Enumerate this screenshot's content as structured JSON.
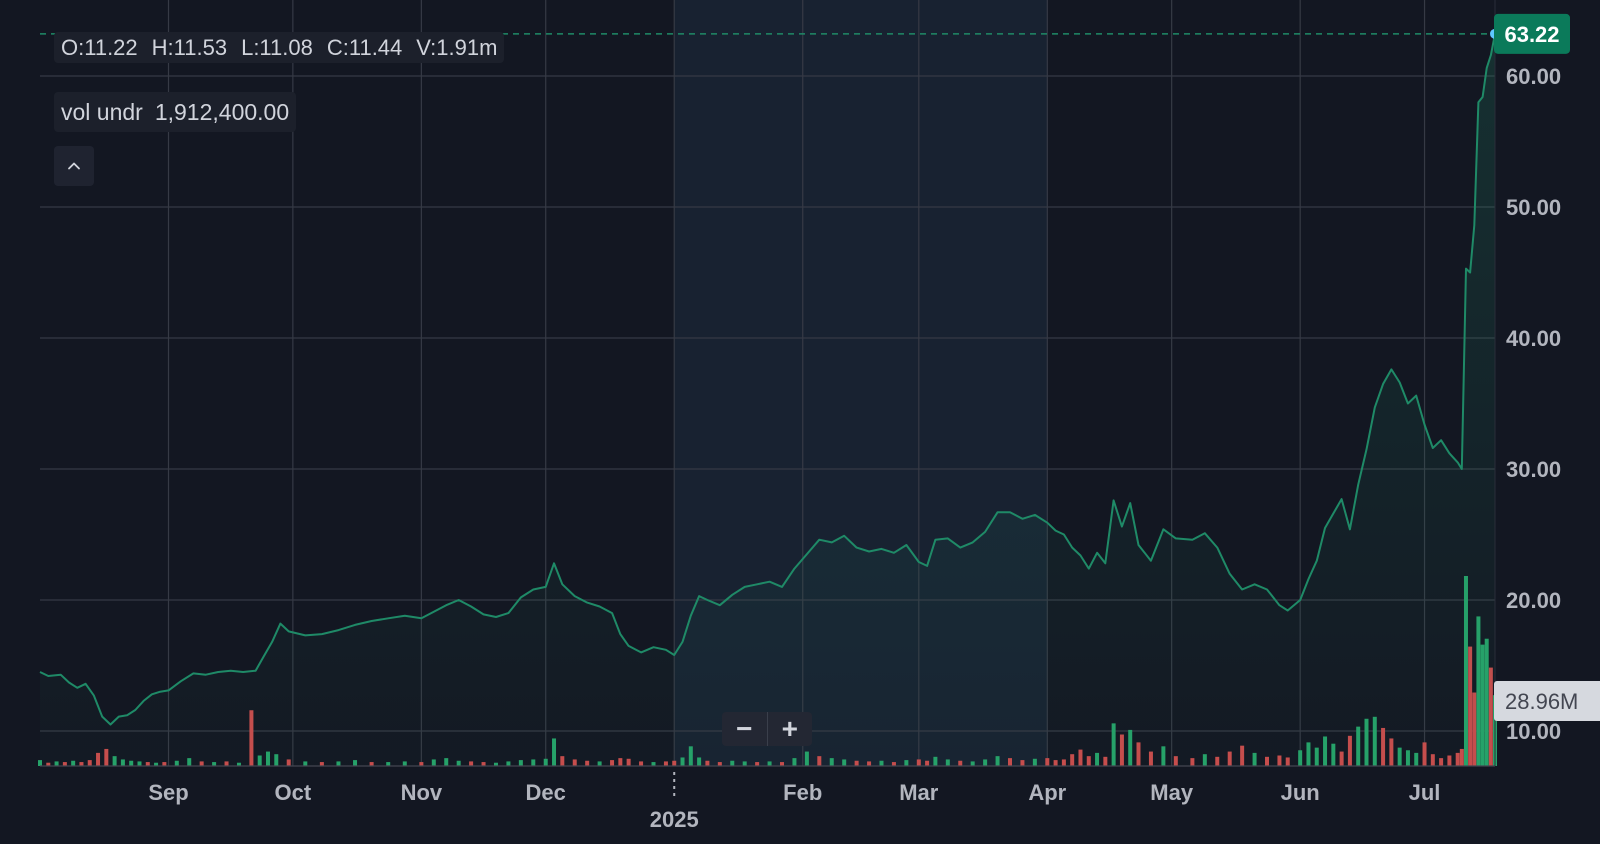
{
  "ohlc": {
    "open": "O:11.22",
    "high": "H:11.53",
    "low": "L:11.08",
    "close": "C:11.44",
    "volume": "V:1.91m"
  },
  "volume_box": {
    "label": "vol undr",
    "value": "1,912,400.00"
  },
  "zoom": {
    "minus_label": "−",
    "plus_label": "+"
  },
  "colors": {
    "background": "#131722",
    "grid": "#363a45",
    "line": "#1f8a67",
    "up_volume": "#26a269",
    "down_volume": "#c94c4c",
    "price_badge": "#0b7a5a",
    "last_dot": "#5ec8ff",
    "highlight_band": "#182231"
  },
  "chart_data": {
    "type": "line",
    "title": "",
    "xlabel": "",
    "ylabel": "",
    "y_range": [
      7.4,
      66.0
    ],
    "y_ticks": [
      10,
      20,
      30,
      40,
      50,
      60
    ],
    "y_tick_labels": [
      "10.00",
      "20.00",
      "30.00",
      "40.00",
      "50.00",
      "60.00"
    ],
    "x_tick_labels": [
      "Sep",
      "Oct",
      "Nov",
      "Dec",
      "Feb",
      "Mar",
      "Apr",
      "May",
      "Jun",
      "Jul"
    ],
    "year_label": "2025",
    "last_price": 63.22,
    "last_price_label": "63.22",
    "volume_axis_label": "28.96M",
    "grid": true,
    "highlighted_period": [
      "2025-01",
      "2025-03"
    ],
    "price_series": [
      [
        "2024-08-01",
        14.5
      ],
      [
        "2024-08-03",
        14.2
      ],
      [
        "2024-08-06",
        14.3
      ],
      [
        "2024-08-08",
        13.7
      ],
      [
        "2024-08-10",
        13.3
      ],
      [
        "2024-08-12",
        13.6
      ],
      [
        "2024-08-14",
        12.7
      ],
      [
        "2024-08-16",
        11.1
      ],
      [
        "2024-08-18",
        10.5
      ],
      [
        "2024-08-20",
        11.1
      ],
      [
        "2024-08-22",
        11.2
      ],
      [
        "2024-08-24",
        11.6
      ],
      [
        "2024-08-26",
        12.3
      ],
      [
        "2024-08-28",
        12.8
      ],
      [
        "2024-08-30",
        13.0
      ],
      [
        "2024-09-01",
        13.1
      ],
      [
        "2024-09-04",
        13.8
      ],
      [
        "2024-09-07",
        14.4
      ],
      [
        "2024-09-10",
        14.3
      ],
      [
        "2024-09-13",
        14.5
      ],
      [
        "2024-09-16",
        14.6
      ],
      [
        "2024-09-19",
        14.5
      ],
      [
        "2024-09-22",
        14.6
      ],
      [
        "2024-09-24",
        15.7
      ],
      [
        "2024-09-26",
        16.8
      ],
      [
        "2024-09-28",
        18.2
      ],
      [
        "2024-09-30",
        17.6
      ],
      [
        "2024-10-04",
        17.3
      ],
      [
        "2024-10-08",
        17.4
      ],
      [
        "2024-10-12",
        17.7
      ],
      [
        "2024-10-16",
        18.1
      ],
      [
        "2024-10-20",
        18.4
      ],
      [
        "2024-10-24",
        18.6
      ],
      [
        "2024-10-28",
        18.8
      ],
      [
        "2024-11-01",
        18.6
      ],
      [
        "2024-11-04",
        19.1
      ],
      [
        "2024-11-07",
        19.6
      ],
      [
        "2024-11-10",
        20.0
      ],
      [
        "2024-11-13",
        19.5
      ],
      [
        "2024-11-16",
        18.9
      ],
      [
        "2024-11-19",
        18.7
      ],
      [
        "2024-11-22",
        19.0
      ],
      [
        "2024-11-25",
        20.2
      ],
      [
        "2024-11-28",
        20.8
      ],
      [
        "2024-12-01",
        21.0
      ],
      [
        "2024-12-03",
        22.8
      ],
      [
        "2024-12-05",
        21.2
      ],
      [
        "2024-12-08",
        20.3
      ],
      [
        "2024-12-11",
        19.8
      ],
      [
        "2024-12-14",
        19.5
      ],
      [
        "2024-12-17",
        19.0
      ],
      [
        "2024-12-19",
        17.4
      ],
      [
        "2024-12-21",
        16.5
      ],
      [
        "2024-12-24",
        16.0
      ],
      [
        "2024-12-27",
        16.4
      ],
      [
        "2024-12-30",
        16.2
      ],
      [
        "2025-01-01",
        15.8
      ],
      [
        "2025-01-03",
        16.8
      ],
      [
        "2025-01-05",
        18.8
      ],
      [
        "2025-01-07",
        20.3
      ],
      [
        "2025-01-09",
        20.0
      ],
      [
        "2025-01-12",
        19.6
      ],
      [
        "2025-01-15",
        20.4
      ],
      [
        "2025-01-18",
        21.0
      ],
      [
        "2025-01-21",
        21.2
      ],
      [
        "2025-01-24",
        21.4
      ],
      [
        "2025-01-27",
        21.0
      ],
      [
        "2025-01-30",
        22.4
      ],
      [
        "2025-02-02",
        23.5
      ],
      [
        "2025-02-05",
        24.6
      ],
      [
        "2025-02-08",
        24.4
      ],
      [
        "2025-02-11",
        24.9
      ],
      [
        "2025-02-14",
        24.0
      ],
      [
        "2025-02-17",
        23.7
      ],
      [
        "2025-02-20",
        23.9
      ],
      [
        "2025-02-23",
        23.6
      ],
      [
        "2025-02-26",
        24.2
      ],
      [
        "2025-03-01",
        22.9
      ],
      [
        "2025-03-03",
        22.6
      ],
      [
        "2025-03-05",
        24.6
      ],
      [
        "2025-03-08",
        24.7
      ],
      [
        "2025-03-11",
        24.0
      ],
      [
        "2025-03-14",
        24.4
      ],
      [
        "2025-03-17",
        25.2
      ],
      [
        "2025-03-20",
        26.7
      ],
      [
        "2025-03-23",
        26.7
      ],
      [
        "2025-03-26",
        26.2
      ],
      [
        "2025-03-29",
        26.5
      ],
      [
        "2025-04-01",
        25.9
      ],
      [
        "2025-04-03",
        25.3
      ],
      [
        "2025-04-05",
        25.0
      ],
      [
        "2025-04-07",
        24.0
      ],
      [
        "2025-04-09",
        23.4
      ],
      [
        "2025-04-11",
        22.4
      ],
      [
        "2025-04-13",
        23.6
      ],
      [
        "2025-04-15",
        22.8
      ],
      [
        "2025-04-17",
        27.6
      ],
      [
        "2025-04-19",
        25.6
      ],
      [
        "2025-04-21",
        27.4
      ],
      [
        "2025-04-23",
        24.2
      ],
      [
        "2025-04-26",
        23.0
      ],
      [
        "2025-04-29",
        25.4
      ],
      [
        "2025-05-02",
        24.7
      ],
      [
        "2025-05-06",
        24.6
      ],
      [
        "2025-05-09",
        25.1
      ],
      [
        "2025-05-12",
        24.0
      ],
      [
        "2025-05-15",
        22.0
      ],
      [
        "2025-05-18",
        20.8
      ],
      [
        "2025-05-21",
        21.2
      ],
      [
        "2025-05-24",
        20.8
      ],
      [
        "2025-05-27",
        19.6
      ],
      [
        "2025-05-29",
        19.2
      ],
      [
        "2025-06-01",
        20.0
      ],
      [
        "2025-06-03",
        21.6
      ],
      [
        "2025-06-05",
        23.0
      ],
      [
        "2025-06-07",
        25.5
      ],
      [
        "2025-06-09",
        26.6
      ],
      [
        "2025-06-11",
        27.7
      ],
      [
        "2025-06-13",
        25.4
      ],
      [
        "2025-06-15",
        28.8
      ],
      [
        "2025-06-17",
        31.5
      ],
      [
        "2025-06-19",
        34.7
      ],
      [
        "2025-06-21",
        36.5
      ],
      [
        "2025-06-23",
        37.6
      ],
      [
        "2025-06-25",
        36.6
      ],
      [
        "2025-06-27",
        35.0
      ],
      [
        "2025-06-29",
        35.6
      ],
      [
        "2025-07-01",
        33.4
      ],
      [
        "2025-07-03",
        31.6
      ],
      [
        "2025-07-05",
        32.2
      ],
      [
        "2025-07-07",
        31.2
      ],
      [
        "2025-07-09",
        30.5
      ],
      [
        "2025-07-10",
        30.0
      ],
      [
        "2025-07-11",
        45.3
      ],
      [
        "2025-07-12",
        45.0
      ],
      [
        "2025-07-13",
        48.6
      ],
      [
        "2025-07-14",
        58.0
      ],
      [
        "2025-07-15",
        58.4
      ],
      [
        "2025-07-16",
        60.6
      ],
      [
        "2025-07-17",
        61.6
      ],
      [
        "2025-07-18",
        63.22
      ]
    ],
    "volume_axis_max": 28.96,
    "volume_series": [
      [
        "2024-08-01",
        0.9,
        "up"
      ],
      [
        "2024-08-03",
        0.5,
        "down"
      ],
      [
        "2024-08-05",
        0.7,
        "up"
      ],
      [
        "2024-08-07",
        0.6,
        "down"
      ],
      [
        "2024-08-09",
        0.8,
        "up"
      ],
      [
        "2024-08-11",
        0.6,
        "down"
      ],
      [
        "2024-08-13",
        0.9,
        "down"
      ],
      [
        "2024-08-15",
        2.0,
        "down"
      ],
      [
        "2024-08-17",
        2.6,
        "down"
      ],
      [
        "2024-08-19",
        1.5,
        "up"
      ],
      [
        "2024-08-21",
        1.0,
        "up"
      ],
      [
        "2024-08-23",
        0.8,
        "up"
      ],
      [
        "2024-08-25",
        0.7,
        "up"
      ],
      [
        "2024-08-27",
        0.6,
        "down"
      ],
      [
        "2024-08-29",
        0.5,
        "up"
      ],
      [
        "2024-08-31",
        0.6,
        "down"
      ],
      [
        "2024-09-03",
        0.8,
        "up"
      ],
      [
        "2024-09-06",
        1.2,
        "up"
      ],
      [
        "2024-09-09",
        0.7,
        "down"
      ],
      [
        "2024-09-12",
        0.6,
        "up"
      ],
      [
        "2024-09-15",
        0.7,
        "down"
      ],
      [
        "2024-09-18",
        0.5,
        "up"
      ],
      [
        "2024-09-21",
        8.5,
        "down"
      ],
      [
        "2024-09-23",
        1.6,
        "up"
      ],
      [
        "2024-09-25",
        2.2,
        "up"
      ],
      [
        "2024-09-27",
        1.8,
        "up"
      ],
      [
        "2024-09-30",
        1.0,
        "down"
      ],
      [
        "2024-10-04",
        0.7,
        "up"
      ],
      [
        "2024-10-08",
        0.6,
        "down"
      ],
      [
        "2024-10-12",
        0.7,
        "up"
      ],
      [
        "2024-10-16",
        0.9,
        "up"
      ],
      [
        "2024-10-20",
        0.6,
        "down"
      ],
      [
        "2024-10-24",
        0.6,
        "up"
      ],
      [
        "2024-10-28",
        0.7,
        "up"
      ],
      [
        "2024-11-01",
        0.6,
        "down"
      ],
      [
        "2024-11-04",
        1.0,
        "up"
      ],
      [
        "2024-11-07",
        1.2,
        "up"
      ],
      [
        "2024-11-10",
        0.8,
        "up"
      ],
      [
        "2024-11-13",
        0.7,
        "down"
      ],
      [
        "2024-11-16",
        0.6,
        "down"
      ],
      [
        "2024-11-19",
        0.5,
        "up"
      ],
      [
        "2024-11-22",
        0.7,
        "up"
      ],
      [
        "2024-11-25",
        0.9,
        "up"
      ],
      [
        "2024-11-28",
        1.0,
        "up"
      ],
      [
        "2024-12-01",
        1.1,
        "up"
      ],
      [
        "2024-12-03",
        4.2,
        "up"
      ],
      [
        "2024-12-05",
        1.5,
        "down"
      ],
      [
        "2024-12-08",
        1.0,
        "down"
      ],
      [
        "2024-12-11",
        0.8,
        "down"
      ],
      [
        "2024-12-14",
        0.7,
        "up"
      ],
      [
        "2024-12-17",
        0.9,
        "down"
      ],
      [
        "2024-12-19",
        1.2,
        "down"
      ],
      [
        "2024-12-21",
        1.1,
        "down"
      ],
      [
        "2024-12-24",
        0.7,
        "down"
      ],
      [
        "2024-12-27",
        0.6,
        "up"
      ],
      [
        "2024-12-30",
        0.7,
        "down"
      ],
      [
        "2025-01-01",
        0.8,
        "down"
      ],
      [
        "2025-01-03",
        1.3,
        "up"
      ],
      [
        "2025-01-05",
        3.0,
        "up"
      ],
      [
        "2025-01-07",
        1.3,
        "up"
      ],
      [
        "2025-01-09",
        0.8,
        "down"
      ],
      [
        "2025-01-12",
        0.6,
        "down"
      ],
      [
        "2025-01-15",
        0.8,
        "up"
      ],
      [
        "2025-01-18",
        0.7,
        "up"
      ],
      [
        "2025-01-21",
        0.6,
        "down"
      ],
      [
        "2025-01-24",
        0.7,
        "up"
      ],
      [
        "2025-01-27",
        0.6,
        "down"
      ],
      [
        "2025-01-30",
        1.2,
        "up"
      ],
      [
        "2025-02-02",
        2.2,
        "up"
      ],
      [
        "2025-02-05",
        1.5,
        "down"
      ],
      [
        "2025-02-08",
        1.2,
        "up"
      ],
      [
        "2025-02-11",
        1.0,
        "up"
      ],
      [
        "2025-02-14",
        0.8,
        "down"
      ],
      [
        "2025-02-17",
        0.7,
        "down"
      ],
      [
        "2025-02-20",
        0.8,
        "up"
      ],
      [
        "2025-02-23",
        0.6,
        "down"
      ],
      [
        "2025-02-26",
        0.9,
        "up"
      ],
      [
        "2025-03-01",
        1.0,
        "down"
      ],
      [
        "2025-03-03",
        0.8,
        "down"
      ],
      [
        "2025-03-05",
        1.4,
        "up"
      ],
      [
        "2025-03-08",
        1.0,
        "up"
      ],
      [
        "2025-03-11",
        0.8,
        "down"
      ],
      [
        "2025-03-14",
        0.7,
        "up"
      ],
      [
        "2025-03-17",
        1.0,
        "up"
      ],
      [
        "2025-03-20",
        1.5,
        "up"
      ],
      [
        "2025-03-23",
        1.2,
        "down"
      ],
      [
        "2025-03-26",
        0.9,
        "down"
      ],
      [
        "2025-03-29",
        1.1,
        "up"
      ],
      [
        "2025-04-01",
        1.2,
        "down"
      ],
      [
        "2025-04-03",
        0.9,
        "down"
      ],
      [
        "2025-04-05",
        1.0,
        "down"
      ],
      [
        "2025-04-07",
        1.8,
        "down"
      ],
      [
        "2025-04-09",
        2.5,
        "down"
      ],
      [
        "2025-04-11",
        1.5,
        "down"
      ],
      [
        "2025-04-13",
        2.0,
        "up"
      ],
      [
        "2025-04-15",
        1.4,
        "down"
      ],
      [
        "2025-04-17",
        6.5,
        "up"
      ],
      [
        "2025-04-19",
        4.8,
        "down"
      ],
      [
        "2025-04-21",
        5.5,
        "up"
      ],
      [
        "2025-04-23",
        3.6,
        "down"
      ],
      [
        "2025-04-26",
        2.2,
        "down"
      ],
      [
        "2025-04-29",
        3.0,
        "up"
      ],
      [
        "2025-05-02",
        1.5,
        "down"
      ],
      [
        "2025-05-06",
        1.2,
        "down"
      ],
      [
        "2025-05-09",
        1.8,
        "up"
      ],
      [
        "2025-05-12",
        1.4,
        "down"
      ],
      [
        "2025-05-15",
        2.2,
        "down"
      ],
      [
        "2025-05-18",
        3.1,
        "down"
      ],
      [
        "2025-05-21",
        2.0,
        "up"
      ],
      [
        "2025-05-24",
        1.4,
        "down"
      ],
      [
        "2025-05-27",
        1.6,
        "down"
      ],
      [
        "2025-05-29",
        1.3,
        "down"
      ],
      [
        "2025-06-01",
        2.4,
        "up"
      ],
      [
        "2025-06-03",
        3.6,
        "up"
      ],
      [
        "2025-06-05",
        2.8,
        "up"
      ],
      [
        "2025-06-07",
        4.5,
        "up"
      ],
      [
        "2025-06-09",
        3.4,
        "up"
      ],
      [
        "2025-06-11",
        2.2,
        "down"
      ],
      [
        "2025-06-13",
        4.6,
        "down"
      ],
      [
        "2025-06-15",
        6.0,
        "up"
      ],
      [
        "2025-06-17",
        7.2,
        "up"
      ],
      [
        "2025-06-19",
        7.5,
        "up"
      ],
      [
        "2025-06-21",
        5.8,
        "down"
      ],
      [
        "2025-06-23",
        4.2,
        "down"
      ],
      [
        "2025-06-25",
        2.8,
        "up"
      ],
      [
        "2025-06-27",
        2.4,
        "up"
      ],
      [
        "2025-06-29",
        2.0,
        "up"
      ],
      [
        "2025-07-01",
        3.6,
        "down"
      ],
      [
        "2025-07-03",
        1.8,
        "down"
      ],
      [
        "2025-07-05",
        1.2,
        "down"
      ],
      [
        "2025-07-07",
        1.6,
        "down"
      ],
      [
        "2025-07-09",
        2.0,
        "down"
      ],
      [
        "2025-07-10",
        2.6,
        "down"
      ],
      [
        "2025-07-11",
        28.96,
        "up"
      ],
      [
        "2025-07-12",
        18.2,
        "down"
      ],
      [
        "2025-07-13",
        11.2,
        "down"
      ],
      [
        "2025-07-14",
        22.8,
        "up"
      ],
      [
        "2025-07-15",
        18.5,
        "up"
      ],
      [
        "2025-07-16",
        19.4,
        "up"
      ],
      [
        "2025-07-17",
        15.0,
        "down"
      ],
      [
        "2025-07-18",
        10.8,
        "up"
      ]
    ]
  }
}
